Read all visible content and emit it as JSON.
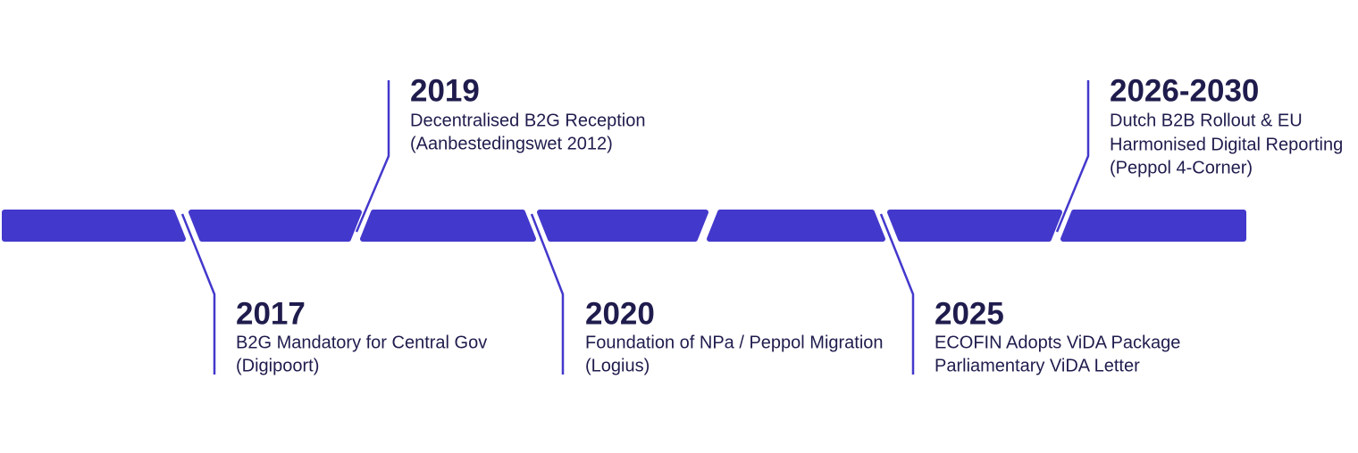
{
  "events": [
    {
      "year": "2017",
      "lines": [
        "B2G Mandatory for Central Gov",
        "(Digipoort)"
      ]
    },
    {
      "year": "2019",
      "lines": [
        "Decentralised B2G Reception",
        "(Aanbestedingswet 2012)"
      ]
    },
    {
      "year": "2020",
      "lines": [
        "Foundation of NPa / Peppol Migration",
        "(Logius)"
      ]
    },
    {
      "year": "2025",
      "lines": [
        "ECOFIN Adopts ViDA Package",
        "Parliamentary ViDA Letter"
      ]
    },
    {
      "year": "2026-2030",
      "lines": [
        "Dutch B2B Rollout & EU",
        "Harmonised Digital Reporting",
        "(Peppol 4-Corner)"
      ]
    }
  ]
}
